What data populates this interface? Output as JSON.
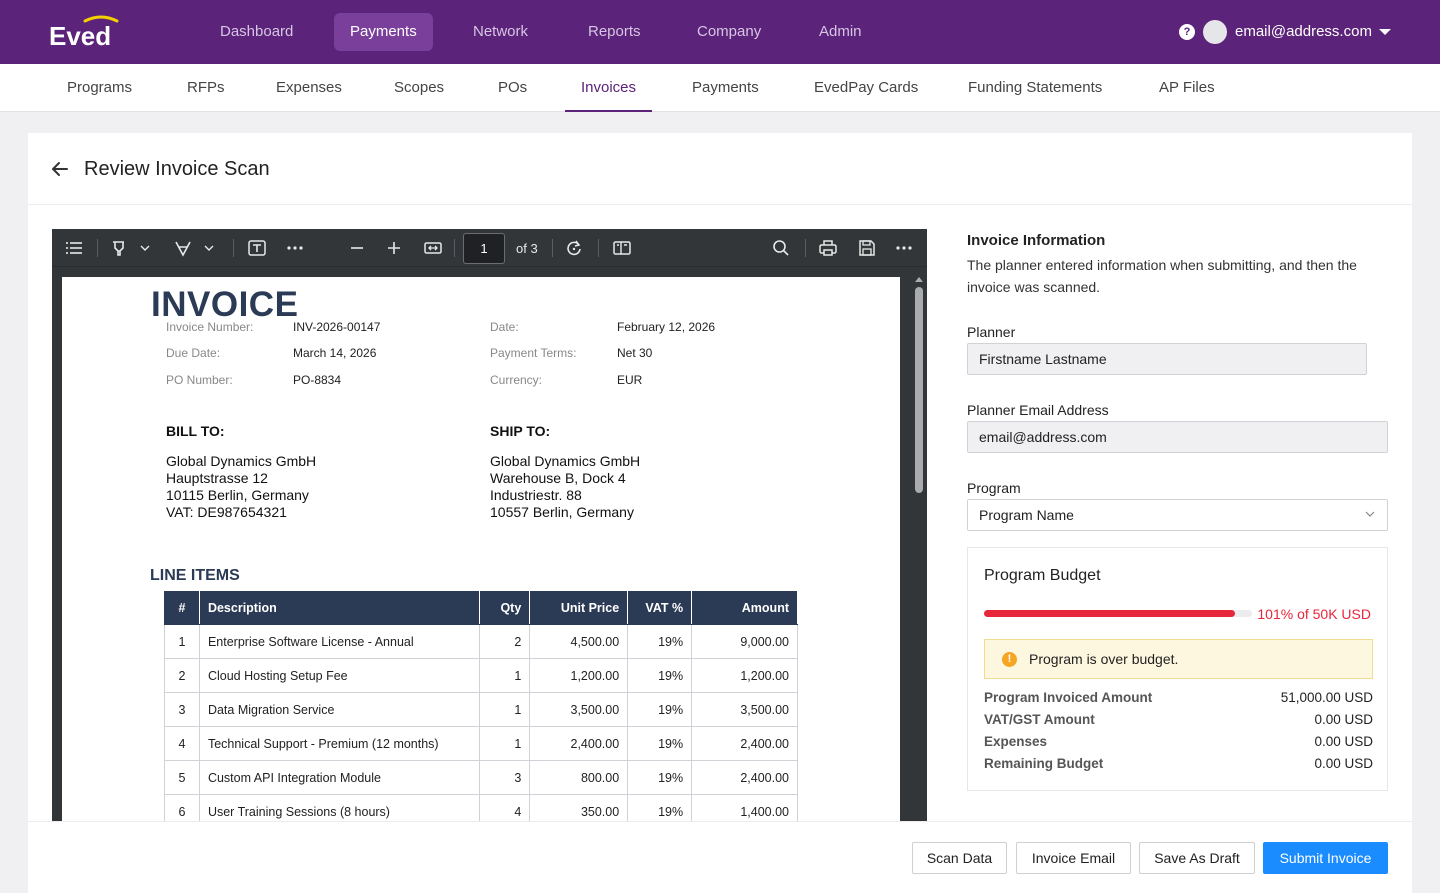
{
  "app": {
    "logo_text": "Eved",
    "top_nav": [
      {
        "label": "Dashboard"
      },
      {
        "label": "Payments"
      },
      {
        "label": "Network"
      },
      {
        "label": "Reports"
      },
      {
        "label": "Company"
      },
      {
        "label": "Admin"
      }
    ],
    "user_email": "email@address.com",
    "help_glyph": "?"
  },
  "sub_nav": [
    {
      "label": "Programs"
    },
    {
      "label": "RFPs"
    },
    {
      "label": "Expenses"
    },
    {
      "label": "Scopes"
    },
    {
      "label": "POs"
    },
    {
      "label": "Invoices"
    },
    {
      "label": "Payments"
    },
    {
      "label": "EvedPay Cards"
    },
    {
      "label": "Funding Statements"
    },
    {
      "label": "AP Files"
    }
  ],
  "page": {
    "title": "Review Invoice Scan"
  },
  "viewer": {
    "page_number": "1",
    "page_total": "of 3"
  },
  "invoice": {
    "title": "INVOICE",
    "invoice_number_label": "Invoice Number:",
    "invoice_number": "INV-2026-00147",
    "date_label": "Date:",
    "date": "February 12, 2026",
    "due_date_label": "Due Date:",
    "due_date": "March 14, 2026",
    "payment_terms_label": "Payment Terms:",
    "payment_terms": "Net 30",
    "po_number_label": "PO Number:",
    "po_number": "PO-8834",
    "currency_label": "Currency:",
    "currency": "EUR",
    "bill_to_heading": "BILL TO:",
    "bill_to": [
      "Global Dynamics GmbH",
      "Hauptstrasse 12",
      "10115 Berlin, Germany",
      "VAT: DE987654321"
    ],
    "ship_to_heading": "SHIP TO:",
    "ship_to": [
      "Global Dynamics GmbH",
      "Warehouse B, Dock 4",
      "Industriestr. 88",
      "10557 Berlin, Germany"
    ],
    "line_items_heading": "LINE ITEMS",
    "columns": [
      "#",
      "Description",
      "Qty",
      "Unit Price",
      "VAT %",
      "Amount"
    ],
    "rows": [
      [
        "1",
        "Enterprise Software License - Annual",
        "2",
        "4,500.00",
        "19%",
        "9,000.00"
      ],
      [
        "2",
        "Cloud Hosting Setup Fee",
        "1",
        "1,200.00",
        "19%",
        "1,200.00"
      ],
      [
        "3",
        "Data Migration Service",
        "1",
        "3,500.00",
        "19%",
        "3,500.00"
      ],
      [
        "4",
        "Technical Support - Premium (12 months)",
        "1",
        "2,400.00",
        "19%",
        "2,400.00"
      ],
      [
        "5",
        "Custom API Integration Module",
        "3",
        "800.00",
        "19%",
        "2,400.00"
      ],
      [
        "6",
        "User Training Sessions (8 hours)",
        "4",
        "350.00",
        "19%",
        "1,400.00"
      ]
    ]
  },
  "info_panel": {
    "title": "Invoice Information",
    "description": "The planner entered information when submitting, and then the invoice was scanned.",
    "planner_label": "Planner",
    "planner_value": "Firstname Lastname",
    "planner_email_label": "Planner Email Address",
    "planner_email_value": "email@address.com",
    "program_label": "Program",
    "program_value": "Program Name"
  },
  "budget": {
    "title": "Program Budget",
    "percent_used": 101,
    "usage_text": "101% of 50K USD",
    "alert_text": "Program is over budget.",
    "rows": [
      {
        "label": "Program Invoiced Amount",
        "value": "51,000.00 USD"
      },
      {
        "label": "VAT/GST Amount",
        "value": "0.00 USD"
      },
      {
        "label": "Expenses",
        "value": "0.00 USD"
      },
      {
        "label": "Remaining Budget",
        "value": "0.00 USD"
      }
    ],
    "colors": {
      "over": "#e7263b",
      "alert_bg": "#fdf7e0",
      "alert_icon": "#f5a623"
    }
  },
  "footer": {
    "scan_data": "Scan Data",
    "invoice_email": "Invoice Email",
    "save_draft": "Save As Draft",
    "submit": "Submit Invoice"
  },
  "colors": {
    "brand": "#5b2379",
    "primary_button": "#1a8cff",
    "invoice_header": "#2b3a55"
  }
}
